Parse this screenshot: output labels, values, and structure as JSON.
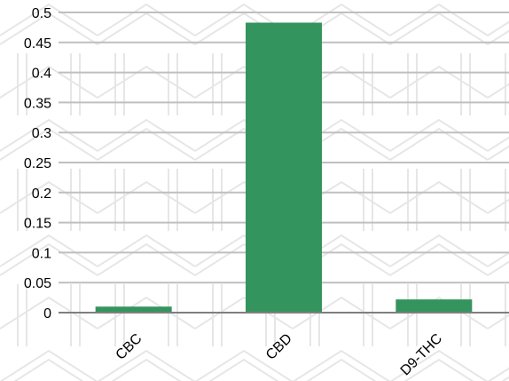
{
  "chart_data": {
    "type": "bar",
    "categories": [
      "CBC",
      "CBD",
      "D9-THC"
    ],
    "values": [
      0.01,
      0.483,
      0.022
    ],
    "title": "",
    "xlabel": "",
    "ylabel": "",
    "ylim": [
      0,
      0.5
    ],
    "yticks": [
      0,
      0.05,
      0.1,
      0.15,
      0.2,
      0.25,
      0.3,
      0.35,
      0.4,
      0.45,
      0.5
    ],
    "ytick_labels": [
      "0",
      "0.05",
      "0.1",
      "0.15",
      "0.2",
      "0.25",
      "0.3",
      "0.35",
      "0.4",
      "0.45",
      "0.5"
    ],
    "grid": true,
    "legend": "none",
    "colors": {
      "bar": "#34945e",
      "grid": "#bfbfbf",
      "axis": "#7f7f7f",
      "background_pattern": "#e6e6e6"
    }
  }
}
